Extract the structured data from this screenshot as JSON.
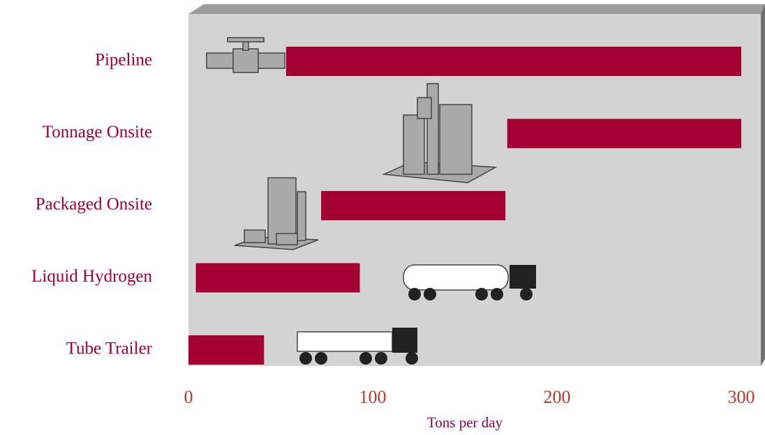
{
  "chart_data": {
    "type": "range-bar",
    "x_label": "Tons per day",
    "categories": [
      "Pipeline",
      "Tonnage Onsite",
      "Packaged Onsite",
      "Liquid Hydrogen",
      "Tube Trailer"
    ],
    "ranges": [
      [
        53,
        300
      ],
      [
        173,
        300
      ],
      [
        72,
        172
      ],
      [
        4,
        93
      ],
      [
        0,
        41
      ]
    ],
    "color": "#a50034",
    "xlim": [
      0,
      300
    ],
    "xticks": [
      0,
      100,
      200,
      300
    ]
  }
}
